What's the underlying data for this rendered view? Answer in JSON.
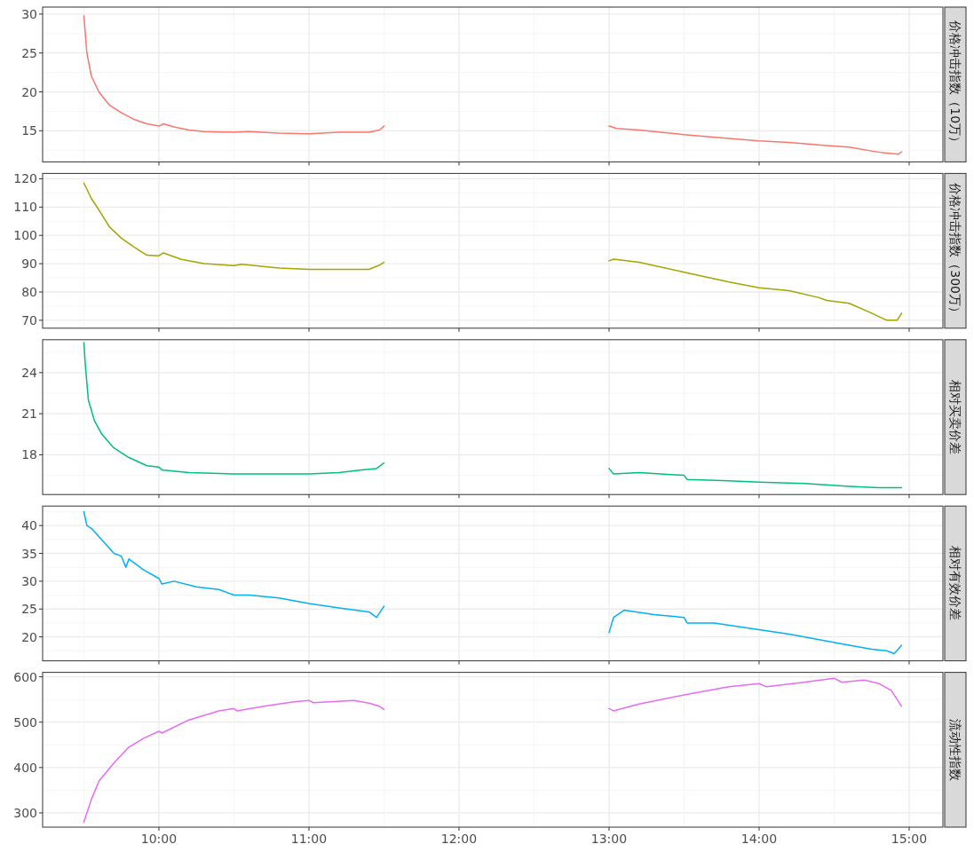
{
  "chart_data": [
    {
      "type": "line",
      "title": "价格冲击指数（10万）",
      "xlim": [
        9.225,
        15.225
      ],
      "xticks": [
        {
          "value": 10,
          "label": null
        },
        {
          "value": 11,
          "label": null
        },
        {
          "value": 12,
          "label": null
        },
        {
          "value": 13,
          "label": null
        },
        {
          "value": 14,
          "label": null
        },
        {
          "value": 15,
          "label": null
        }
      ],
      "ylim": [
        11.0,
        30.9
      ],
      "yticks": [
        15,
        20,
        25,
        30
      ],
      "grid": true,
      "tick_labels": "y",
      "series": [
        {
          "color": "#f8766d",
          "x": [
            9.5,
            9.52,
            9.55,
            9.6,
            9.67,
            9.75,
            9.83,
            9.92,
            10.0,
            10.03,
            10.1,
            10.2,
            10.3,
            10.5,
            10.6,
            10.8,
            11.0,
            11.2,
            11.4,
            11.47,
            11.5
          ],
          "values": [
            29.8,
            25,
            22,
            20,
            18.3,
            17.3,
            16.5,
            15.9,
            15.6,
            15.9,
            15.5,
            15.1,
            14.9,
            14.8,
            14.9,
            14.7,
            14.6,
            14.8,
            14.8,
            15.1,
            15.6
          ]
        },
        {
          "color": "#f8766d",
          "x": [
            13.0,
            13.05,
            13.2,
            13.5,
            13.8,
            14.0,
            14.2,
            14.45,
            14.6,
            14.75,
            14.82,
            14.93,
            14.95
          ],
          "values": [
            15.6,
            15.3,
            15.1,
            14.5,
            14.0,
            13.7,
            13.5,
            13.1,
            12.9,
            12.4,
            12.2,
            12.0,
            12.3
          ]
        }
      ]
    },
    {
      "type": "line",
      "title": "价格冲击指数（300万）",
      "xlim": [
        9.225,
        15.225
      ],
      "xticks": [
        {
          "value": 10,
          "label": null
        },
        {
          "value": 11,
          "label": null
        },
        {
          "value": 12,
          "label": null
        },
        {
          "value": 13,
          "label": null
        },
        {
          "value": 14,
          "label": null
        },
        {
          "value": 15,
          "label": null
        }
      ],
      "ylim": [
        67.2,
        121.9
      ],
      "yticks": [
        70,
        80,
        90,
        100,
        110,
        120
      ],
      "grid": true,
      "tick_labels": "y",
      "series": [
        {
          "color": "#a3a500",
          "x": [
            9.5,
            9.55,
            9.6,
            9.67,
            9.75,
            9.83,
            9.92,
            10.0,
            10.03,
            10.15,
            10.3,
            10.5,
            10.55,
            10.8,
            11.0,
            11.2,
            11.4,
            11.47,
            11.5
          ],
          "values": [
            118.5,
            113,
            109,
            103,
            99,
            96,
            93,
            92.8,
            93.8,
            91.5,
            90,
            89.3,
            89.8,
            88.5,
            88,
            88,
            88,
            89.5,
            90.5
          ]
        },
        {
          "color": "#a3a500",
          "x": [
            13.0,
            13.03,
            13.2,
            13.5,
            13.8,
            14.0,
            14.2,
            14.4,
            14.45,
            14.6,
            14.75,
            14.85,
            14.92,
            14.95
          ],
          "values": [
            91,
            91.6,
            90.5,
            87,
            83.5,
            81.5,
            80.5,
            78,
            77,
            76,
            72.5,
            70,
            70,
            72.5
          ]
        }
      ]
    },
    {
      "type": "line",
      "title": "相对买卖价差",
      "xlim": [
        9.225,
        15.225
      ],
      "xticks": [
        {
          "value": 10,
          "label": null
        },
        {
          "value": 11,
          "label": null
        },
        {
          "value": 12,
          "label": null
        },
        {
          "value": 13,
          "label": null
        },
        {
          "value": 14,
          "label": null
        },
        {
          "value": 15,
          "label": null
        }
      ],
      "ylim": [
        15.1,
        26.4
      ],
      "yticks": [
        18,
        21,
        24
      ],
      "grid": true,
      "tick_labels": "y",
      "series": [
        {
          "color": "#00bf7d",
          "x": [
            9.5,
            9.51,
            9.53,
            9.57,
            9.62,
            9.7,
            9.8,
            9.92,
            10.0,
            10.02,
            10.2,
            10.5,
            10.75,
            11.0,
            11.2,
            11.35,
            11.45,
            11.5
          ],
          "values": [
            26.2,
            24.5,
            22,
            20.5,
            19.5,
            18.5,
            17.8,
            17.2,
            17.1,
            16.9,
            16.7,
            16.6,
            16.6,
            16.6,
            16.7,
            16.9,
            17.0,
            17.4
          ]
        },
        {
          "color": "#00bf7d",
          "x": [
            13.0,
            13.03,
            13.2,
            13.5,
            13.52,
            13.8,
            14.0,
            14.3,
            14.6,
            14.8,
            14.95
          ],
          "values": [
            17.0,
            16.6,
            16.7,
            16.5,
            16.2,
            16.1,
            16.0,
            15.9,
            15.7,
            15.6,
            15.6
          ]
        }
      ]
    },
    {
      "type": "line",
      "title": "相对有效价差",
      "xlim": [
        9.225,
        15.225
      ],
      "xticks": [
        {
          "value": 10,
          "label": null
        },
        {
          "value": 11,
          "label": null
        },
        {
          "value": 12,
          "label": null
        },
        {
          "value": 13,
          "label": null
        },
        {
          "value": 14,
          "label": null
        },
        {
          "value": 15,
          "label": null
        }
      ],
      "ylim": [
        15.7,
        43.5
      ],
      "yticks": [
        20,
        25,
        30,
        35,
        40
      ],
      "grid": true,
      "tick_labels": "y",
      "series": [
        {
          "color": "#00b0f6",
          "x": [
            9.5,
            9.52,
            9.55,
            9.6,
            9.65,
            9.7,
            9.75,
            9.78,
            9.8,
            9.9,
            10.0,
            10.02,
            10.1,
            10.25,
            10.4,
            10.5,
            10.6,
            10.8,
            11.0,
            11.2,
            11.4,
            11.45,
            11.5
          ],
          "values": [
            42.5,
            40,
            39.5,
            38,
            36.5,
            35,
            34.5,
            32.5,
            34,
            32,
            30.5,
            29.5,
            30,
            29,
            28.5,
            27.5,
            27.5,
            27,
            26,
            25.2,
            24.5,
            23.5,
            25.5
          ]
        },
        {
          "color": "#00b0f6",
          "x": [
            13.0,
            13.03,
            13.1,
            13.3,
            13.5,
            13.52,
            13.7,
            14.0,
            14.2,
            14.4,
            14.6,
            14.75,
            14.85,
            14.9,
            14.95
          ],
          "values": [
            20.8,
            23.5,
            24.8,
            24,
            23.5,
            22.5,
            22.5,
            21.3,
            20.5,
            19.5,
            18.5,
            17.8,
            17.5,
            17.0,
            18.5
          ]
        }
      ]
    },
    {
      "type": "line",
      "title": "流动性指数",
      "xlim": [
        9.225,
        15.225
      ],
      "xticks": [
        {
          "value": 10,
          "label": "10:00"
        },
        {
          "value": 11,
          "label": "11:00"
        },
        {
          "value": 12,
          "label": "12:00"
        },
        {
          "value": 13,
          "label": "13:00"
        },
        {
          "value": 14,
          "label": "14:00"
        },
        {
          "value": 15,
          "label": "15:00"
        }
      ],
      "ylim": [
        268.6,
        609.8
      ],
      "yticks": [
        300,
        400,
        500,
        600
      ],
      "grid": true,
      "series": [
        {
          "color": "#e76bf3",
          "x": [
            9.5,
            9.55,
            9.6,
            9.7,
            9.8,
            9.9,
            10.0,
            10.02,
            10.2,
            10.4,
            10.5,
            10.52,
            10.7,
            10.9,
            11.0,
            11.03,
            11.3,
            11.4,
            11.47,
            11.5
          ],
          "values": [
            280,
            330,
            370,
            410,
            445,
            465,
            480,
            476,
            505,
            525,
            530,
            525,
            535,
            545,
            548,
            543,
            548,
            542,
            535,
            528
          ]
        },
        {
          "color": "#e76bf3",
          "x": [
            13.0,
            13.03,
            13.2,
            13.5,
            13.8,
            14.0,
            14.05,
            14.3,
            14.5,
            14.55,
            14.7,
            14.8,
            14.88,
            14.95
          ],
          "values": [
            530,
            525,
            540,
            560,
            578,
            585,
            578,
            588,
            597,
            588,
            593,
            585,
            570,
            535
          ]
        }
      ]
    }
  ]
}
